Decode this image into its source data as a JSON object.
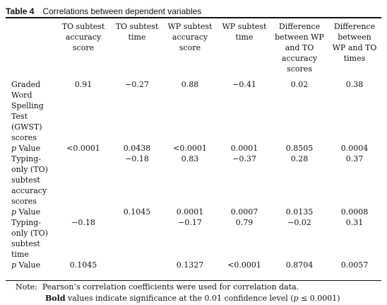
{
  "caption": {
    "label": "Table 4",
    "title": "Correlations between dependent variables"
  },
  "columns": [
    "",
    "TO subtest\naccuracy\nscore",
    "TO subtest\ntime",
    "WP subtest\naccuracy\nscore",
    "WP subtest\ntime",
    "Difference\nbetween WP\nand TO\naccuracy\nscores",
    "Difference\nbetween\nWP and TO\ntimes"
  ],
  "rows": [
    {
      "label": "Graded\nWord\nSpelling\nTest\n(GWST)\nscores",
      "cells": [
        {
          "v": "0.91",
          "b": true
        },
        {
          "v": "−0.27",
          "b": false
        },
        {
          "v": "0.88",
          "b": true
        },
        {
          "v": "−0.41",
          "b": true
        },
        {
          "v": "0.02",
          "b": false
        },
        {
          "v": "0.38",
          "b": false
        }
      ]
    },
    {
      "label": "p Value",
      "cells": [
        {
          "v": "<0.0001",
          "b": true
        },
        {
          "v": "0.0438",
          "b": false
        },
        {
          "v": "<0.0001",
          "b": true
        },
        {
          "v": "0.0001",
          "b": true
        },
        {
          "v": "0.8505",
          "b": false
        },
        {
          "v": "0.0004",
          "b": false
        }
      ]
    },
    {
      "label": "Typing-\nonly (TO)\nsubtest\naccuracy\nscores",
      "cells": [
        {
          "v": "",
          "b": false
        },
        {
          "v": "−0.18",
          "b": false
        },
        {
          "v": "0.83",
          "b": true
        },
        {
          "v": "−0.37",
          "b": false
        },
        {
          "v": "0.28",
          "b": false
        },
        {
          "v": "0.37",
          "b": false
        }
      ]
    },
    {
      "label": "p Value",
      "cells": [
        {
          "v": "",
          "b": false
        },
        {
          "v": "0.1045",
          "b": false
        },
        {
          "v": "0.0001",
          "b": true
        },
        {
          "v": "0.0007",
          "b": false
        },
        {
          "v": "0.0135",
          "b": false
        },
        {
          "v": "0.0008",
          "b": false
        }
      ]
    },
    {
      "label": "Typing-\nonly (TO)\nsubtest\ntime",
      "cells": [
        {
          "v": "−0.18",
          "b": false
        },
        {
          "v": "",
          "b": false
        },
        {
          "v": "−0.17",
          "b": false
        },
        {
          "v": "0.79",
          "b": true
        },
        {
          "v": "−0.02",
          "b": false
        },
        {
          "v": "0.31",
          "b": false
        }
      ]
    },
    {
      "label": "p Value",
      "cells": [
        {
          "v": "0.1045",
          "b": false
        },
        {
          "v": "",
          "b": false
        },
        {
          "v": "0.1327",
          "b": false
        },
        {
          "v": "<0.0001",
          "b": true
        },
        {
          "v": "0.8704",
          "b": false
        },
        {
          "v": "0.0057",
          "b": false
        }
      ]
    }
  ],
  "notes": {
    "line1_prefix": "Note:",
    "line1_text": "Pearson’s correlation coefficients were used for correlation data.",
    "line2_bold": "Bold",
    "line2_text": "values indicate significance at the 0.01 confidence level (",
    "line2_p": "p",
    "line2_end": "≤ 0.0001)"
  }
}
